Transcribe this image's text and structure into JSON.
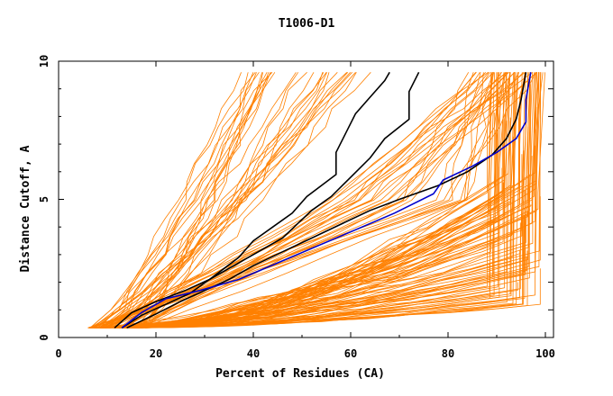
{
  "chart_data": {
    "type": "line",
    "title": "T1006-D1",
    "xlabel": "Percent of Residues (CA)",
    "ylabel": "Distance Cutoff, A",
    "xlim": [
      0,
      100
    ],
    "ylim": [
      0,
      10
    ],
    "x_ticks": [
      0,
      20,
      40,
      60,
      80,
      100
    ],
    "x_tick_labels": [
      "0",
      "20",
      "40",
      "60",
      "80",
      "100"
    ],
    "y_ticks": [
      0,
      5,
      10
    ],
    "y_tick_labels": [
      "0",
      "5",
      "10"
    ],
    "grid": false,
    "colors": {
      "background_lines": "#ff8000",
      "highlight_black": "#000000",
      "highlight_blue": "#0000cc"
    },
    "highlighted_series": [
      {
        "name": "black-1",
        "color": "#000000",
        "points": [
          [
            13,
            0.35
          ],
          [
            17,
            0.8
          ],
          [
            22,
            1.2
          ],
          [
            27,
            1.6
          ],
          [
            31,
            2.1
          ],
          [
            34,
            2.5
          ],
          [
            37,
            2.9
          ],
          [
            40,
            3.5
          ],
          [
            44,
            4.0
          ],
          [
            48,
            4.5
          ],
          [
            51,
            5.1
          ],
          [
            54,
            5.5
          ],
          [
            57,
            5.9
          ],
          [
            57,
            6.7
          ],
          [
            59,
            7.4
          ],
          [
            61,
            8.1
          ],
          [
            64,
            8.7
          ],
          [
            67,
            9.3
          ],
          [
            68,
            9.6
          ]
        ]
      },
      {
        "name": "black-2",
        "color": "#000000",
        "points": [
          [
            11.5,
            0.35
          ],
          [
            15,
            0.9
          ],
          [
            20,
            1.3
          ],
          [
            26,
            1.7
          ],
          [
            31,
            2.1
          ],
          [
            36,
            2.6
          ],
          [
            41,
            3.1
          ],
          [
            46,
            3.6
          ],
          [
            49,
            4.1
          ],
          [
            52,
            4.6
          ],
          [
            56,
            5.1
          ],
          [
            60,
            5.8
          ],
          [
            64,
            6.5
          ],
          [
            67,
            7.2
          ],
          [
            72,
            7.9
          ],
          [
            72,
            8.9
          ],
          [
            74,
            9.6
          ]
        ]
      },
      {
        "name": "black-3",
        "color": "#000000",
        "points": [
          [
            14,
            0.35
          ],
          [
            20,
            0.85
          ],
          [
            25,
            1.3
          ],
          [
            30,
            1.7
          ],
          [
            35,
            2.1
          ],
          [
            40,
            2.6
          ],
          [
            46,
            3.1
          ],
          [
            52,
            3.6
          ],
          [
            58,
            4.1
          ],
          [
            64,
            4.6
          ],
          [
            70,
            5.0
          ],
          [
            78,
            5.5
          ],
          [
            84,
            6.0
          ],
          [
            89,
            6.6
          ],
          [
            92,
            7.2
          ],
          [
            94,
            7.9
          ],
          [
            95,
            8.6
          ],
          [
            96,
            9.6
          ]
        ]
      },
      {
        "name": "blue",
        "color": "#0000cc",
        "points": [
          [
            13,
            0.35
          ],
          [
            17,
            0.9
          ],
          [
            22,
            1.4
          ],
          [
            29,
            1.7
          ],
          [
            37,
            2.1
          ],
          [
            45,
            2.7
          ],
          [
            53,
            3.3
          ],
          [
            61,
            3.9
          ],
          [
            69,
            4.5
          ],
          [
            77,
            5.2
          ],
          [
            79,
            5.7
          ],
          [
            85,
            6.2
          ],
          [
            90,
            6.7
          ],
          [
            94,
            7.2
          ],
          [
            96,
            7.8
          ],
          [
            96,
            8.6
          ],
          [
            97,
            9.6
          ]
        ]
      }
    ]
  }
}
